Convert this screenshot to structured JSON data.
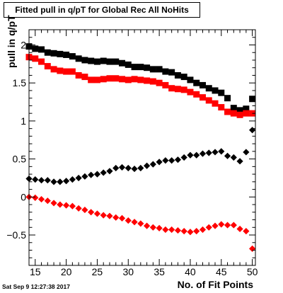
{
  "title": "Fitted pull in q/pT for Global Rec All NoHits",
  "timestamp": "Sat Sep  9 12:27:38 2017",
  "chart_data": {
    "type": "scatter",
    "title": "Fitted pull in q/pT for Global Rec All NoHits",
    "xlabel": "No. of Fit Points",
    "ylabel": "pull in q/pT",
    "xlim": [
      14,
      50.5
    ],
    "ylim": [
      -0.9,
      2.2
    ],
    "x_ticks": [
      15,
      20,
      25,
      30,
      35,
      40,
      45,
      50
    ],
    "x_tick_labels": [
      "15",
      "20",
      "25",
      "30",
      "35",
      "40",
      "45",
      "50"
    ],
    "y_ticks": [
      -0.5,
      0,
      0.5,
      1,
      1.5,
      2
    ],
    "y_tick_labels": [
      "−0.5",
      "0",
      "0.5",
      "1",
      "1.5",
      "2"
    ],
    "grid": false,
    "series": [
      {
        "marker": "square",
        "color": "#000000",
        "x": [
          14,
          15,
          16,
          17,
          18,
          19,
          20,
          21,
          22,
          23,
          24,
          25,
          26,
          27,
          28,
          29,
          30,
          31,
          32,
          33,
          34,
          35,
          36,
          37,
          38,
          39,
          40,
          41,
          42,
          43,
          44,
          45,
          46,
          47,
          48,
          49,
          50
        ],
        "y": [
          1.98,
          1.95,
          1.94,
          1.9,
          1.89,
          1.88,
          1.87,
          1.85,
          1.82,
          1.8,
          1.79,
          1.78,
          1.79,
          1.78,
          1.78,
          1.76,
          1.74,
          1.71,
          1.71,
          1.7,
          1.68,
          1.68,
          1.65,
          1.64,
          1.6,
          1.58,
          1.54,
          1.5,
          1.47,
          1.43,
          1.4,
          1.37,
          1.3,
          1.17,
          1.14,
          1.16,
          1.29
        ]
      },
      {
        "marker": "square",
        "color": "#ff0000",
        "x": [
          14,
          15,
          16,
          17,
          18,
          19,
          20,
          21,
          22,
          23,
          24,
          25,
          26,
          27,
          28,
          29,
          30,
          31,
          32,
          33,
          34,
          35,
          36,
          37,
          38,
          39,
          40,
          41,
          42,
          43,
          44,
          45,
          46,
          47,
          48,
          49,
          50
        ],
        "y": [
          1.84,
          1.82,
          1.78,
          1.72,
          1.68,
          1.66,
          1.65,
          1.65,
          1.6,
          1.58,
          1.54,
          1.54,
          1.55,
          1.56,
          1.56,
          1.55,
          1.54,
          1.55,
          1.54,
          1.53,
          1.52,
          1.5,
          1.47,
          1.43,
          1.42,
          1.41,
          1.38,
          1.35,
          1.31,
          1.27,
          1.23,
          1.18,
          1.12,
          1.1,
          1.08,
          1.1,
          1.1
        ]
      },
      {
        "marker": "diamond",
        "color": "#000000",
        "x": [
          14,
          15,
          16,
          17,
          18,
          19,
          20,
          21,
          22,
          23,
          24,
          25,
          26,
          27,
          28,
          29,
          30,
          31,
          32,
          33,
          34,
          35,
          36,
          37,
          38,
          39,
          40,
          41,
          42,
          43,
          44,
          45,
          46,
          47,
          48,
          49,
          50
        ],
        "y": [
          0.24,
          0.23,
          0.22,
          0.22,
          0.2,
          0.2,
          0.21,
          0.23,
          0.25,
          0.27,
          0.29,
          0.3,
          0.32,
          0.34,
          0.38,
          0.39,
          0.38,
          0.37,
          0.38,
          0.41,
          0.43,
          0.46,
          0.48,
          0.48,
          0.49,
          0.52,
          0.55,
          0.55,
          0.57,
          0.58,
          0.59,
          0.6,
          0.54,
          0.52,
          0.47,
          0.59,
          0.88
        ]
      },
      {
        "marker": "diamond",
        "color": "#ff0000",
        "x": [
          14,
          15,
          16,
          17,
          18,
          19,
          20,
          21,
          22,
          23,
          24,
          25,
          26,
          27,
          28,
          29,
          30,
          31,
          32,
          33,
          34,
          35,
          36,
          37,
          38,
          39,
          40,
          41,
          42,
          43,
          44,
          45,
          46,
          47,
          48,
          49,
          50
        ],
        "y": [
          0.0,
          -0.01,
          -0.03,
          -0.05,
          -0.08,
          -0.1,
          -0.11,
          -0.12,
          -0.15,
          -0.17,
          -0.2,
          -0.22,
          -0.24,
          -0.25,
          -0.27,
          -0.28,
          -0.31,
          -0.33,
          -0.35,
          -0.38,
          -0.4,
          -0.41,
          -0.43,
          -0.43,
          -0.44,
          -0.45,
          -0.46,
          -0.45,
          -0.43,
          -0.4,
          -0.38,
          -0.36,
          -0.37,
          -0.37,
          -0.42,
          -0.45,
          -0.68
        ]
      }
    ]
  }
}
